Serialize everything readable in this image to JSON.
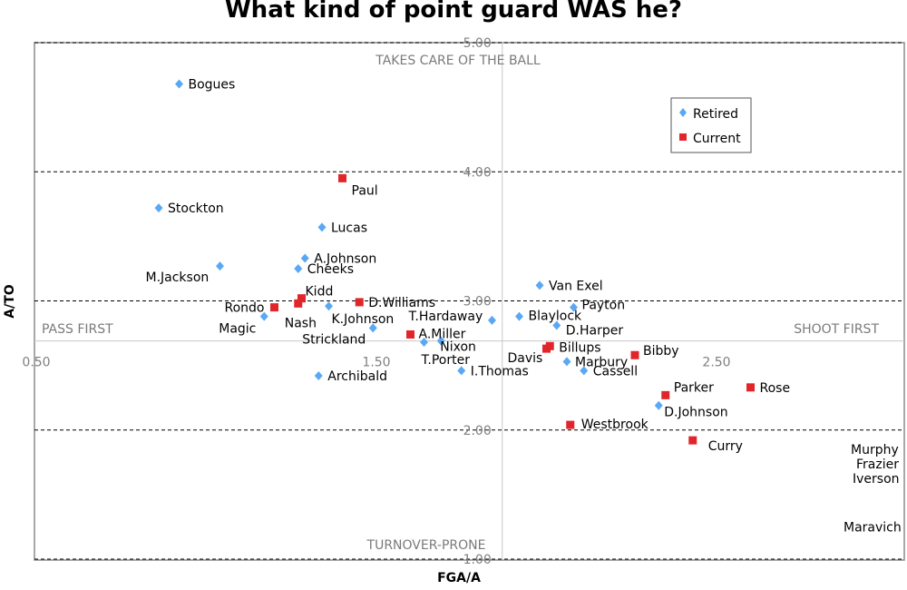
{
  "chart_data": {
    "type": "scatter",
    "title": "What kind of point guard WAS he?",
    "xlabel": "FGA/A",
    "ylabel": "A/TO",
    "xlim": [
      0.5,
      3.05
    ],
    "ylim": [
      1.0,
      5.0
    ],
    "x_ticks": [
      "0.50",
      "1.50",
      "2.50"
    ],
    "y_ticks": [
      "1.00",
      "2.00",
      "3.00",
      "4.00",
      "5.00"
    ],
    "axes_cross": {
      "x": 1.87,
      "y": 2.69
    },
    "grid": "dashed horizontal lines at y ticks",
    "legend_position": "top-right",
    "quadrant_labels": {
      "top": "TAKES CARE OF THE BALL",
      "bottom": "TURNOVER-PRONE",
      "left": "PASS FIRST",
      "right": "SHOOT FIRST"
    },
    "series": [
      {
        "name": "Retired",
        "color": "#5aa8f5",
        "marker": "diamond",
        "points": [
          {
            "label": "Bogues",
            "x": 0.92,
            "y": 4.68
          },
          {
            "label": "Stockton",
            "x": 0.86,
            "y": 3.72
          },
          {
            "label": "M.Jackson",
            "x": 1.04,
            "y": 3.27
          },
          {
            "label": "Lucas",
            "x": 1.34,
            "y": 3.57
          },
          {
            "label": "A.Johnson",
            "x": 1.29,
            "y": 3.33
          },
          {
            "label": "Cheeks",
            "x": 1.27,
            "y": 3.25
          },
          {
            "label": "Magic",
            "x": 1.17,
            "y": 2.88
          },
          {
            "label": "K.Johnson",
            "x": 1.36,
            "y": 2.96
          },
          {
            "label": "Strickland",
            "x": 1.49,
            "y": 2.79
          },
          {
            "label": "T.Porter",
            "x": 1.64,
            "y": 2.68
          },
          {
            "label": "Nixon",
            "x": 1.69,
            "y": 2.69
          },
          {
            "label": "I.Thomas",
            "x": 1.75,
            "y": 2.46
          },
          {
            "label": "Archibald",
            "x": 1.33,
            "y": 2.42
          },
          {
            "label": "T.Hardaway",
            "x": 1.84,
            "y": 2.85
          },
          {
            "label": "Van Exel",
            "x": 1.98,
            "y": 3.12
          },
          {
            "label": "Payton",
            "x": 2.08,
            "y": 2.95
          },
          {
            "label": "Blaylock",
            "x": 1.92,
            "y": 2.88
          },
          {
            "label": "D.Harper",
            "x": 2.03,
            "y": 2.81
          },
          {
            "label": "Marbury",
            "x": 2.06,
            "y": 2.53
          },
          {
            "label": "Cassell",
            "x": 2.11,
            "y": 2.46
          },
          {
            "label": "D.Johnson",
            "x": 2.33,
            "y": 2.19
          }
        ]
      },
      {
        "name": "Current",
        "color": "#e0262b",
        "marker": "square",
        "points": [
          {
            "label": "Paul",
            "x": 1.4,
            "y": 3.95
          },
          {
            "label": "Kidd",
            "x": 1.28,
            "y": 3.02
          },
          {
            "label": "Nash",
            "x": 1.27,
            "y": 2.98
          },
          {
            "label": "Rondo",
            "x": 1.2,
            "y": 2.95
          },
          {
            "label": "D.Williams",
            "x": 1.45,
            "y": 2.99
          },
          {
            "label": "A.Miller",
            "x": 1.6,
            "y": 2.74
          },
          {
            "label": "Billups",
            "x": 2.01,
            "y": 2.65
          },
          {
            "label": "Davis",
            "x": 2.0,
            "y": 2.63
          },
          {
            "label": "Bibby",
            "x": 2.26,
            "y": 2.58
          },
          {
            "label": "Parker",
            "x": 2.35,
            "y": 2.27
          },
          {
            "label": "Rose",
            "x": 2.6,
            "y": 2.33
          },
          {
            "label": "Westbrook",
            "x": 2.07,
            "y": 2.04
          },
          {
            "label": "Curry",
            "x": 2.43,
            "y": 1.92
          }
        ]
      }
    ],
    "off_chart_labels": [
      {
        "label": "Murphy",
        "y": 1.85
      },
      {
        "label": "Frazier",
        "y": 1.78
      },
      {
        "label": "Iverson",
        "y": 1.72
      },
      {
        "label": "Maravich",
        "y": 1.25
      }
    ]
  }
}
